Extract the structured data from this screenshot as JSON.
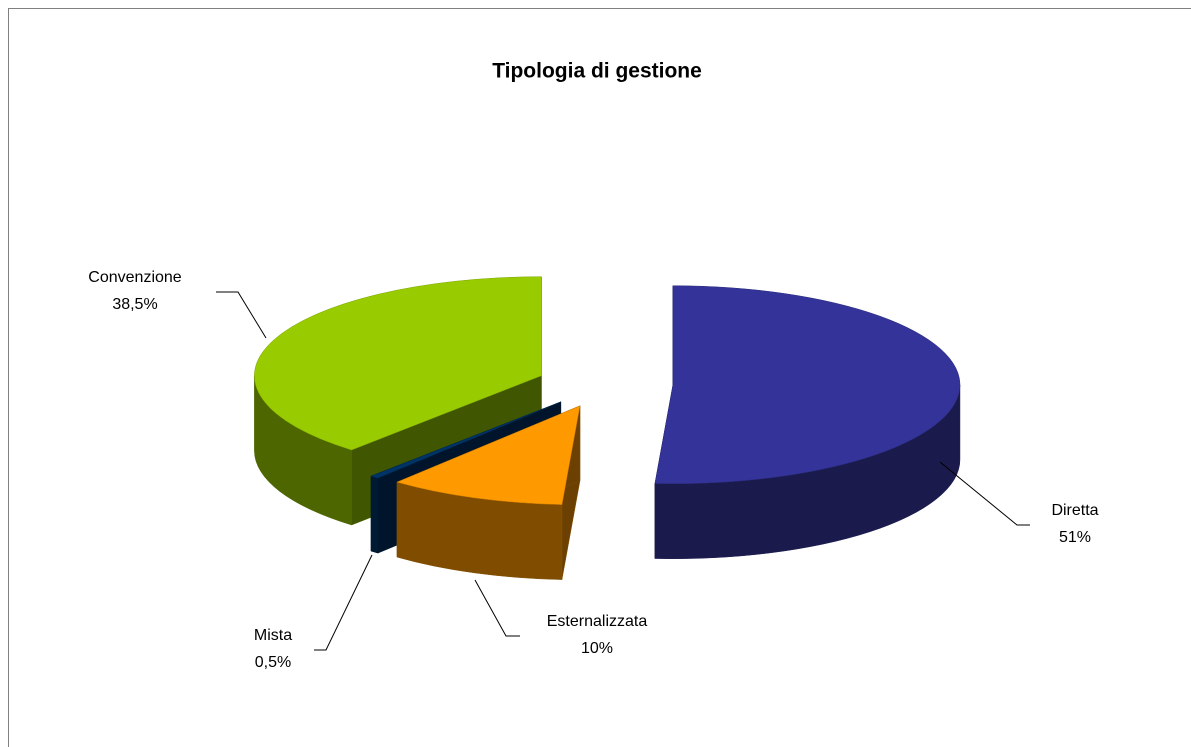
{
  "chart_data": {
    "type": "pie",
    "title": "Tipologia di gestione",
    "categories": [
      "Diretta",
      "Esternalizzata",
      "Mista",
      "Convenzione"
    ],
    "values": [
      51,
      10,
      0.5,
      38.5
    ],
    "value_labels": [
      "51%",
      "10%",
      "0,5%",
      "38,5%"
    ],
    "colors": [
      "#333399",
      "#ff9900",
      "#003366",
      "#99cc00"
    ]
  }
}
